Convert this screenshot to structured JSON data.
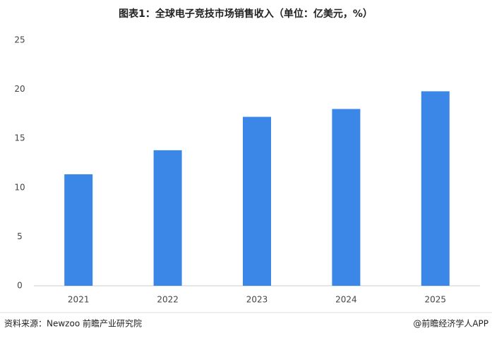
{
  "chart_data": {
    "type": "bar",
    "title": "图表1：全球电子竞技市场销售收入（单位：亿美元，%）",
    "categories": [
      "2021",
      "2022",
      "2023",
      "2024",
      "2025"
    ],
    "values": [
      11.35,
      13.8,
      17.2,
      18.0,
      19.8
    ],
    "color": "#3a87e8",
    "ylim": [
      0,
      25
    ],
    "yticks": [
      0,
      5,
      10,
      15,
      20,
      25
    ],
    "grid": false,
    "source": "资料来源：Newzoo  前瞻产业研究院",
    "credit": "@前瞻经济学人APP"
  }
}
